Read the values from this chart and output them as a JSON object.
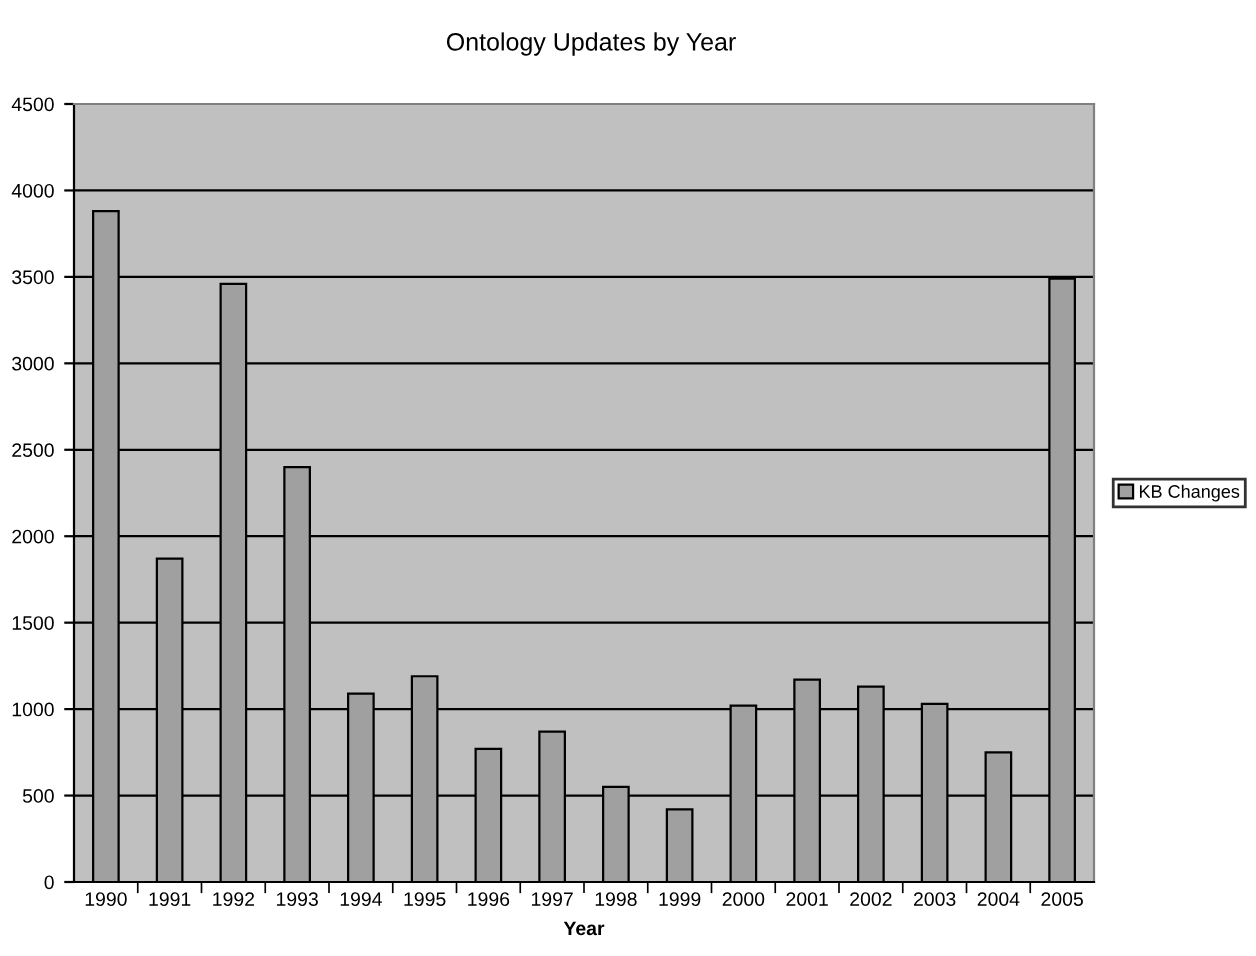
{
  "chart_data": {
    "type": "bar",
    "title": "Ontology Updates by Year",
    "xlabel": "Year",
    "categories": [
      "1990",
      "1991",
      "1992",
      "1993",
      "1994",
      "1995",
      "1996",
      "1997",
      "1998",
      "1999",
      "2000",
      "2001",
      "2002",
      "2003",
      "2004",
      "2005"
    ],
    "series": [
      {
        "name": "KB Changes",
        "color": "#a0a0a0",
        "values": [
          3880,
          1870,
          3460,
          2400,
          1090,
          1190,
          770,
          870,
          550,
          420,
          1020,
          1170,
          1130,
          1030,
          750,
          3490
        ]
      }
    ],
    "ylim": [
      0,
      4500
    ],
    "yticks": [
      0,
      500,
      1000,
      1500,
      2000,
      2500,
      3000,
      3500,
      4000,
      4500
    ],
    "grid": "y",
    "legend": "right"
  }
}
